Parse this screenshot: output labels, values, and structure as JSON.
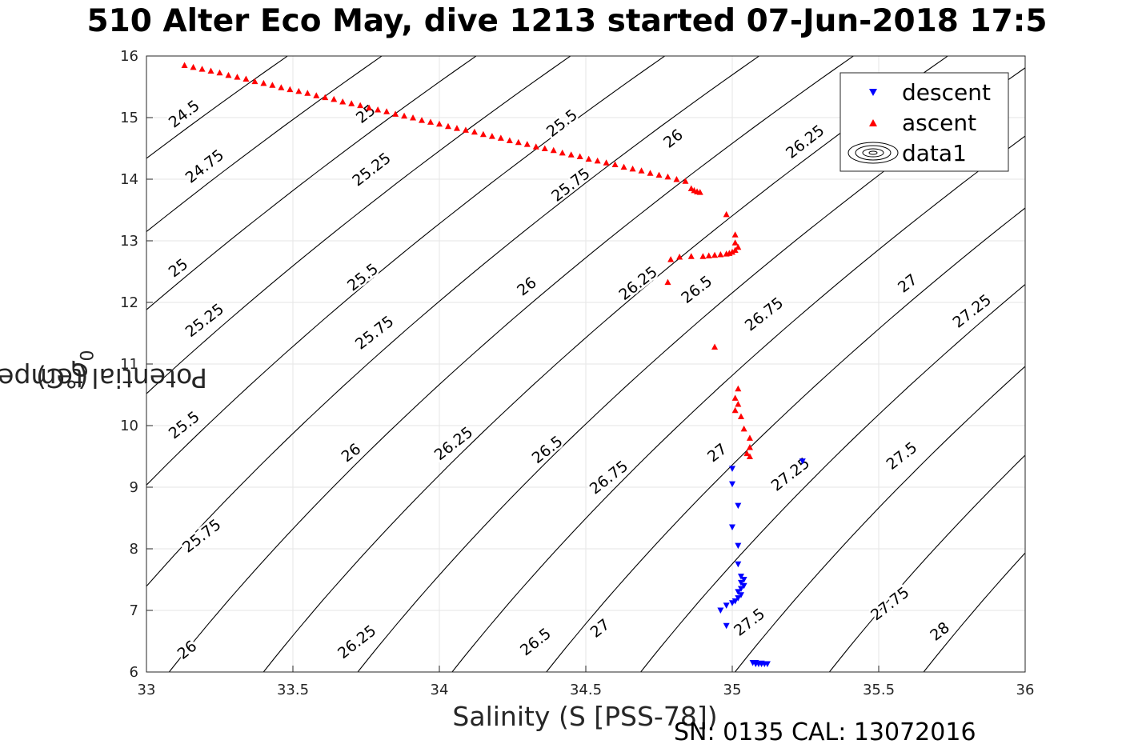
{
  "chart_data": {
    "type": "scatter",
    "title": "510 Alter Eco May, dive 1213 started 07-Jun-2018 17:5",
    "xlabel": "Salinity (S [PSS-78])",
    "ylabel_main": "Potential temperature ",
    "ylabel_symbol": "σ",
    "ylabel_sub": "0",
    "ylabel_unit": " (°C)",
    "footer": "SN: 0135  CAL: 13072016",
    "xlim": [
      33,
      36
    ],
    "ylim": [
      6,
      16
    ],
    "xticks": [
      "33",
      "33.5",
      "34",
      "34.5",
      "35",
      "35.5",
      "36"
    ],
    "yticks": [
      "6",
      "7",
      "8",
      "9",
      "10",
      "11",
      "12",
      "13",
      "14",
      "15",
      "16"
    ],
    "grid": true,
    "legend_position": "top-right",
    "legend": [
      "descent",
      "ascent",
      "data1"
    ],
    "colors": {
      "descent": "#0000ff",
      "ascent": "#ff0000",
      "contour": "#000000",
      "grid": "#e6e6e6"
    },
    "contour_levels": [
      24.5,
      24.75,
      25,
      25.25,
      25.5,
      25.75,
      26,
      26.25,
      26.5,
      26.75,
      27,
      27.25,
      27.5,
      27.75,
      28
    ],
    "contour_labels": [
      {
        "text": "24.5",
        "s": 33.13,
        "t": 15.05
      },
      {
        "text": "24.75",
        "s": 33.2,
        "t": 14.2
      },
      {
        "text": "25",
        "s": 33.11,
        "t": 12.55
      },
      {
        "text": "25.25",
        "s": 33.2,
        "t": 11.7
      },
      {
        "text": "25.5",
        "s": 33.13,
        "t": 10.0
      },
      {
        "text": "25.75",
        "s": 33.19,
        "t": 8.2
      },
      {
        "text": "26",
        "s": 33.14,
        "t": 6.35
      },
      {
        "text": "25",
        "s": 33.75,
        "t": 15.05
      },
      {
        "text": "25.25",
        "s": 33.77,
        "t": 14.15
      },
      {
        "text": "25.5",
        "s": 33.74,
        "t": 12.4
      },
      {
        "text": "25.75",
        "s": 33.78,
        "t": 11.5
      },
      {
        "text": "26",
        "s": 33.7,
        "t": 9.55
      },
      {
        "text": "26.25",
        "s": 33.72,
        "t": 6.48
      },
      {
        "text": "26.25",
        "s": 34.05,
        "t": 9.7
      },
      {
        "text": "26.5",
        "s": 34.33,
        "t": 6.48
      },
      {
        "text": "25.5",
        "s": 34.42,
        "t": 14.9
      },
      {
        "text": "25.75",
        "s": 34.45,
        "t": 13.9
      },
      {
        "text": "26",
        "s": 34.3,
        "t": 12.25
      },
      {
        "text": "26.5",
        "s": 34.37,
        "t": 9.6
      },
      {
        "text": "26.75",
        "s": 34.58,
        "t": 9.15
      },
      {
        "text": "27",
        "s": 34.55,
        "t": 6.7
      },
      {
        "text": "26",
        "s": 34.8,
        "t": 14.65
      },
      {
        "text": "26.25",
        "s": 34.68,
        "t": 12.3
      },
      {
        "text": "26.5",
        "s": 34.88,
        "t": 12.2
      },
      {
        "text": "26.75",
        "s": 35.11,
        "t": 11.8
      },
      {
        "text": "27",
        "s": 34.95,
        "t": 9.55
      },
      {
        "text": "27.25",
        "s": 35.2,
        "t": 9.2
      },
      {
        "text": "27.5",
        "s": 35.06,
        "t": 6.8
      },
      {
        "text": "26.25",
        "s": 35.25,
        "t": 14.6
      },
      {
        "text": "27",
        "s": 35.6,
        "t": 12.3
      },
      {
        "text": "27.25",
        "s": 35.82,
        "t": 11.85
      },
      {
        "text": "27.5",
        "s": 35.58,
        "t": 9.5
      },
      {
        "text": "27.75",
        "s": 35.54,
        "t": 7.1
      },
      {
        "text": "28",
        "s": 35.71,
        "t": 6.65
      }
    ],
    "series": [
      {
        "name": "descent",
        "marker": "triangle-down",
        "points": [
          [
            35.0,
            9.3
          ],
          [
            35.0,
            9.05
          ],
          [
            35.02,
            8.7
          ],
          [
            35.0,
            8.35
          ],
          [
            35.02,
            8.05
          ],
          [
            35.02,
            7.75
          ],
          [
            35.03,
            7.55
          ],
          [
            35.04,
            7.5
          ],
          [
            35.03,
            7.45
          ],
          [
            35.04,
            7.4
          ],
          [
            35.03,
            7.35
          ],
          [
            35.02,
            7.3
          ],
          [
            35.03,
            7.25
          ],
          [
            35.02,
            7.2
          ],
          [
            35.01,
            7.15
          ],
          [
            35.0,
            7.12
          ],
          [
            34.98,
            7.08
          ],
          [
            34.96,
            7.0
          ],
          [
            34.98,
            6.75
          ],
          [
            35.24,
            9.42
          ],
          [
            35.07,
            6.15
          ],
          [
            35.08,
            6.13
          ],
          [
            35.09,
            6.13
          ],
          [
            35.1,
            6.13
          ],
          [
            35.11,
            6.13
          ],
          [
            35.12,
            6.13
          ],
          [
            35.08,
            6.15
          ],
          [
            35.1,
            6.14
          ]
        ]
      },
      {
        "name": "ascent",
        "marker": "triangle-up",
        "points": [
          [
            33.13,
            15.85
          ],
          [
            33.16,
            15.82
          ],
          [
            33.19,
            15.79
          ],
          [
            33.22,
            15.76
          ],
          [
            33.25,
            15.73
          ],
          [
            33.28,
            15.69
          ],
          [
            33.31,
            15.66
          ],
          [
            33.34,
            15.63
          ],
          [
            33.37,
            15.59
          ],
          [
            33.4,
            15.56
          ],
          [
            33.43,
            15.53
          ],
          [
            33.46,
            15.49
          ],
          [
            33.49,
            15.46
          ],
          [
            33.52,
            15.43
          ],
          [
            33.55,
            15.4
          ],
          [
            33.58,
            15.36
          ],
          [
            33.61,
            15.33
          ],
          [
            33.64,
            15.3
          ],
          [
            33.67,
            15.26
          ],
          [
            33.7,
            15.23
          ],
          [
            33.73,
            15.2
          ],
          [
            33.76,
            15.16
          ],
          [
            33.79,
            15.13
          ],
          [
            33.82,
            15.1
          ],
          [
            33.85,
            15.06
          ],
          [
            33.88,
            15.03
          ],
          [
            33.91,
            15.0
          ],
          [
            33.94,
            14.96
          ],
          [
            33.97,
            14.93
          ],
          [
            34.0,
            14.9
          ],
          [
            34.03,
            14.86
          ],
          [
            34.06,
            14.83
          ],
          [
            34.09,
            14.8
          ],
          [
            34.12,
            14.77
          ],
          [
            34.15,
            14.73
          ],
          [
            34.18,
            14.7
          ],
          [
            34.21,
            14.67
          ],
          [
            34.24,
            14.63
          ],
          [
            34.27,
            14.6
          ],
          [
            34.3,
            14.57
          ],
          [
            34.33,
            14.53
          ],
          [
            34.36,
            14.5
          ],
          [
            34.39,
            14.47
          ],
          [
            34.42,
            14.43
          ],
          [
            34.45,
            14.4
          ],
          [
            34.48,
            14.37
          ],
          [
            34.51,
            14.33
          ],
          [
            34.54,
            14.3
          ],
          [
            34.57,
            14.27
          ],
          [
            34.6,
            14.24
          ],
          [
            34.63,
            14.2
          ],
          [
            34.66,
            14.17
          ],
          [
            34.69,
            14.14
          ],
          [
            34.72,
            14.1
          ],
          [
            34.75,
            14.07
          ],
          [
            34.78,
            14.04
          ],
          [
            34.81,
            14.0
          ],
          [
            34.84,
            13.97
          ],
          [
            34.86,
            13.85
          ],
          [
            34.87,
            13.82
          ],
          [
            34.88,
            13.8
          ],
          [
            34.89,
            13.79
          ],
          [
            34.98,
            13.43
          ],
          [
            35.01,
            13.1
          ],
          [
            35.01,
            12.97
          ],
          [
            35.02,
            12.9
          ],
          [
            35.01,
            12.85
          ],
          [
            35.0,
            12.82
          ],
          [
            34.99,
            12.8
          ],
          [
            34.98,
            12.79
          ],
          [
            34.96,
            12.78
          ],
          [
            34.94,
            12.77
          ],
          [
            34.92,
            12.76
          ],
          [
            34.9,
            12.75
          ],
          [
            34.86,
            12.75
          ],
          [
            34.82,
            12.74
          ],
          [
            34.79,
            12.7
          ],
          [
            34.78,
            12.33
          ],
          [
            34.94,
            11.28
          ],
          [
            35.02,
            10.6
          ],
          [
            35.01,
            10.45
          ],
          [
            35.02,
            10.35
          ],
          [
            35.01,
            10.25
          ],
          [
            35.03,
            10.15
          ],
          [
            35.04,
            9.95
          ],
          [
            35.06,
            9.8
          ],
          [
            35.06,
            9.65
          ],
          [
            35.05,
            9.55
          ],
          [
            35.06,
            9.5
          ]
        ]
      }
    ]
  }
}
